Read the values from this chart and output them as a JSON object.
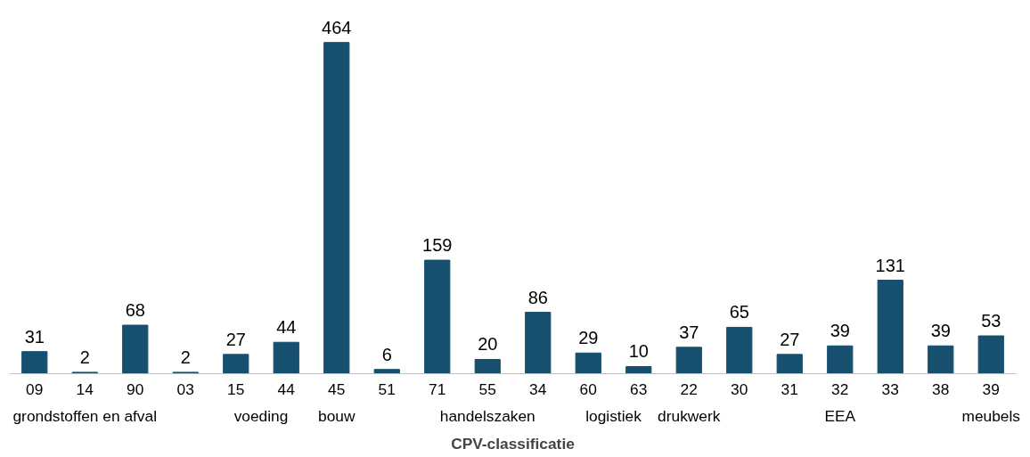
{
  "chart_data": {
    "type": "bar",
    "xlabel": "CPV-classificatie",
    "categories": [
      "09",
      "14",
      "90",
      "03",
      "15",
      "44",
      "45",
      "51",
      "71",
      "55",
      "34",
      "60",
      "63",
      "22",
      "30",
      "31",
      "32",
      "33",
      "38",
      "39"
    ],
    "values": [
      31,
      2,
      68,
      2,
      27,
      44,
      464,
      6,
      159,
      20,
      86,
      29,
      10,
      37,
      65,
      27,
      39,
      131,
      39,
      53
    ],
    "color": "#17506f",
    "data_labels": true,
    "grid": false,
    "annotations": [
      "grondstoffen en afval",
      "voeding",
      "bouw",
      "handelszaken",
      "logistiek",
      "drukwerk",
      "EEA",
      "meubels"
    ]
  }
}
